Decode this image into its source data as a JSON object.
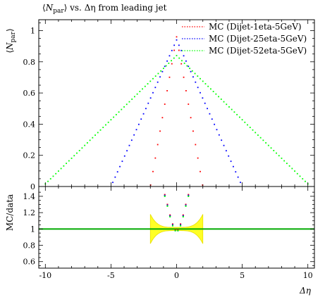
{
  "chart_data": [
    {
      "type": "scatter",
      "title": "⟨N_par⟩ vs. Δη from leading jet",
      "title_parts": {
        "pre": "⟨",
        "main": "N",
        "sub": "par",
        "post": "⟩ vs. Δη from leading jet"
      },
      "ylabel": "⟨N_par⟩",
      "ylabel_parts": {
        "pre": "⟨",
        "main": "N",
        "sub": "par",
        "post": "⟩"
      },
      "xlim": [
        -10.5,
        10.5
      ],
      "ylim": [
        0,
        1.07
      ],
      "yticks": [
        0,
        0.2,
        0.4,
        0.6,
        0.8,
        1
      ],
      "ytick_labels": [
        "0",
        "0.2",
        "0.4",
        "0.6",
        "0.8",
        "1"
      ],
      "grid": false,
      "legend_position": "top-right",
      "series": [
        {
          "name": "MC (Dijet-1eta-5GeV)",
          "color": "#ff0000",
          "center": 0,
          "width": 2.0,
          "peak": 0.96
        },
        {
          "name": "MC (Dijet-25eta-5GeV)",
          "color": "#0000ff",
          "center": 0,
          "width": 5.0,
          "peak": 0.94
        },
        {
          "name": "MC (Dijet-52eta-5GeV)",
          "color": "#00ff00",
          "center": 0,
          "width": 10.2,
          "peak": 0.84
        }
      ]
    },
    {
      "type": "scatter",
      "ylabel": "MC/data",
      "xlabel": "Δη",
      "xlim": [
        -10.5,
        10.5
      ],
      "ylim": [
        0.52,
        1.52
      ],
      "yticks": [
        0.6,
        0.8,
        1,
        1.2,
        1.4
      ],
      "ytick_labels": [
        "0.6",
        "0.8",
        "1",
        "1.2",
        "1.4"
      ],
      "xticks": [
        -10,
        -5,
        0,
        5,
        10
      ],
      "xtick_labels": [
        "-10",
        "-5",
        "0",
        "5",
        "10"
      ],
      "reference": {
        "value": 1,
        "color": "#00aa00"
      },
      "uncertainty_band": {
        "xmin": -2.0,
        "xmax": 2.0,
        "color": "#ffff00",
        "half_height_edge": 0.18,
        "half_height_center": 0.02
      },
      "ratio_series": [
        {
          "name": "MC (Dijet-1eta-5GeV)",
          "color": "#ff0000",
          "x": [
            -0.9,
            -0.7,
            -0.5,
            -0.3,
            -0.1,
            0.1,
            0.3,
            0.5,
            0.7,
            0.9
          ],
          "y": [
            1.42,
            1.3,
            1.17,
            1.06,
            0.99,
            0.99,
            1.06,
            1.17,
            1.3,
            1.42
          ]
        },
        {
          "name": "MC (Dijet-25eta-5GeV)",
          "color": "#0000ff",
          "x": [
            -0.9,
            -0.7,
            -0.5,
            -0.3,
            -0.1,
            0.1,
            0.3,
            0.5,
            0.7,
            0.9
          ],
          "y": [
            1.41,
            1.29,
            1.16,
            1.05,
            0.98,
            0.98,
            1.05,
            1.16,
            1.29,
            1.41
          ]
        },
        {
          "name": "MC (Dijet-52eta-5GeV)",
          "color": "#00ff00",
          "x": [
            -0.9,
            -0.7,
            -0.5,
            -0.3,
            -0.1,
            0.1,
            0.3,
            0.5,
            0.7,
            0.9
          ],
          "y": [
            1.4,
            1.28,
            1.15,
            1.04,
            0.98,
            0.98,
            1.04,
            1.15,
            1.28,
            1.4
          ]
        }
      ]
    }
  ]
}
